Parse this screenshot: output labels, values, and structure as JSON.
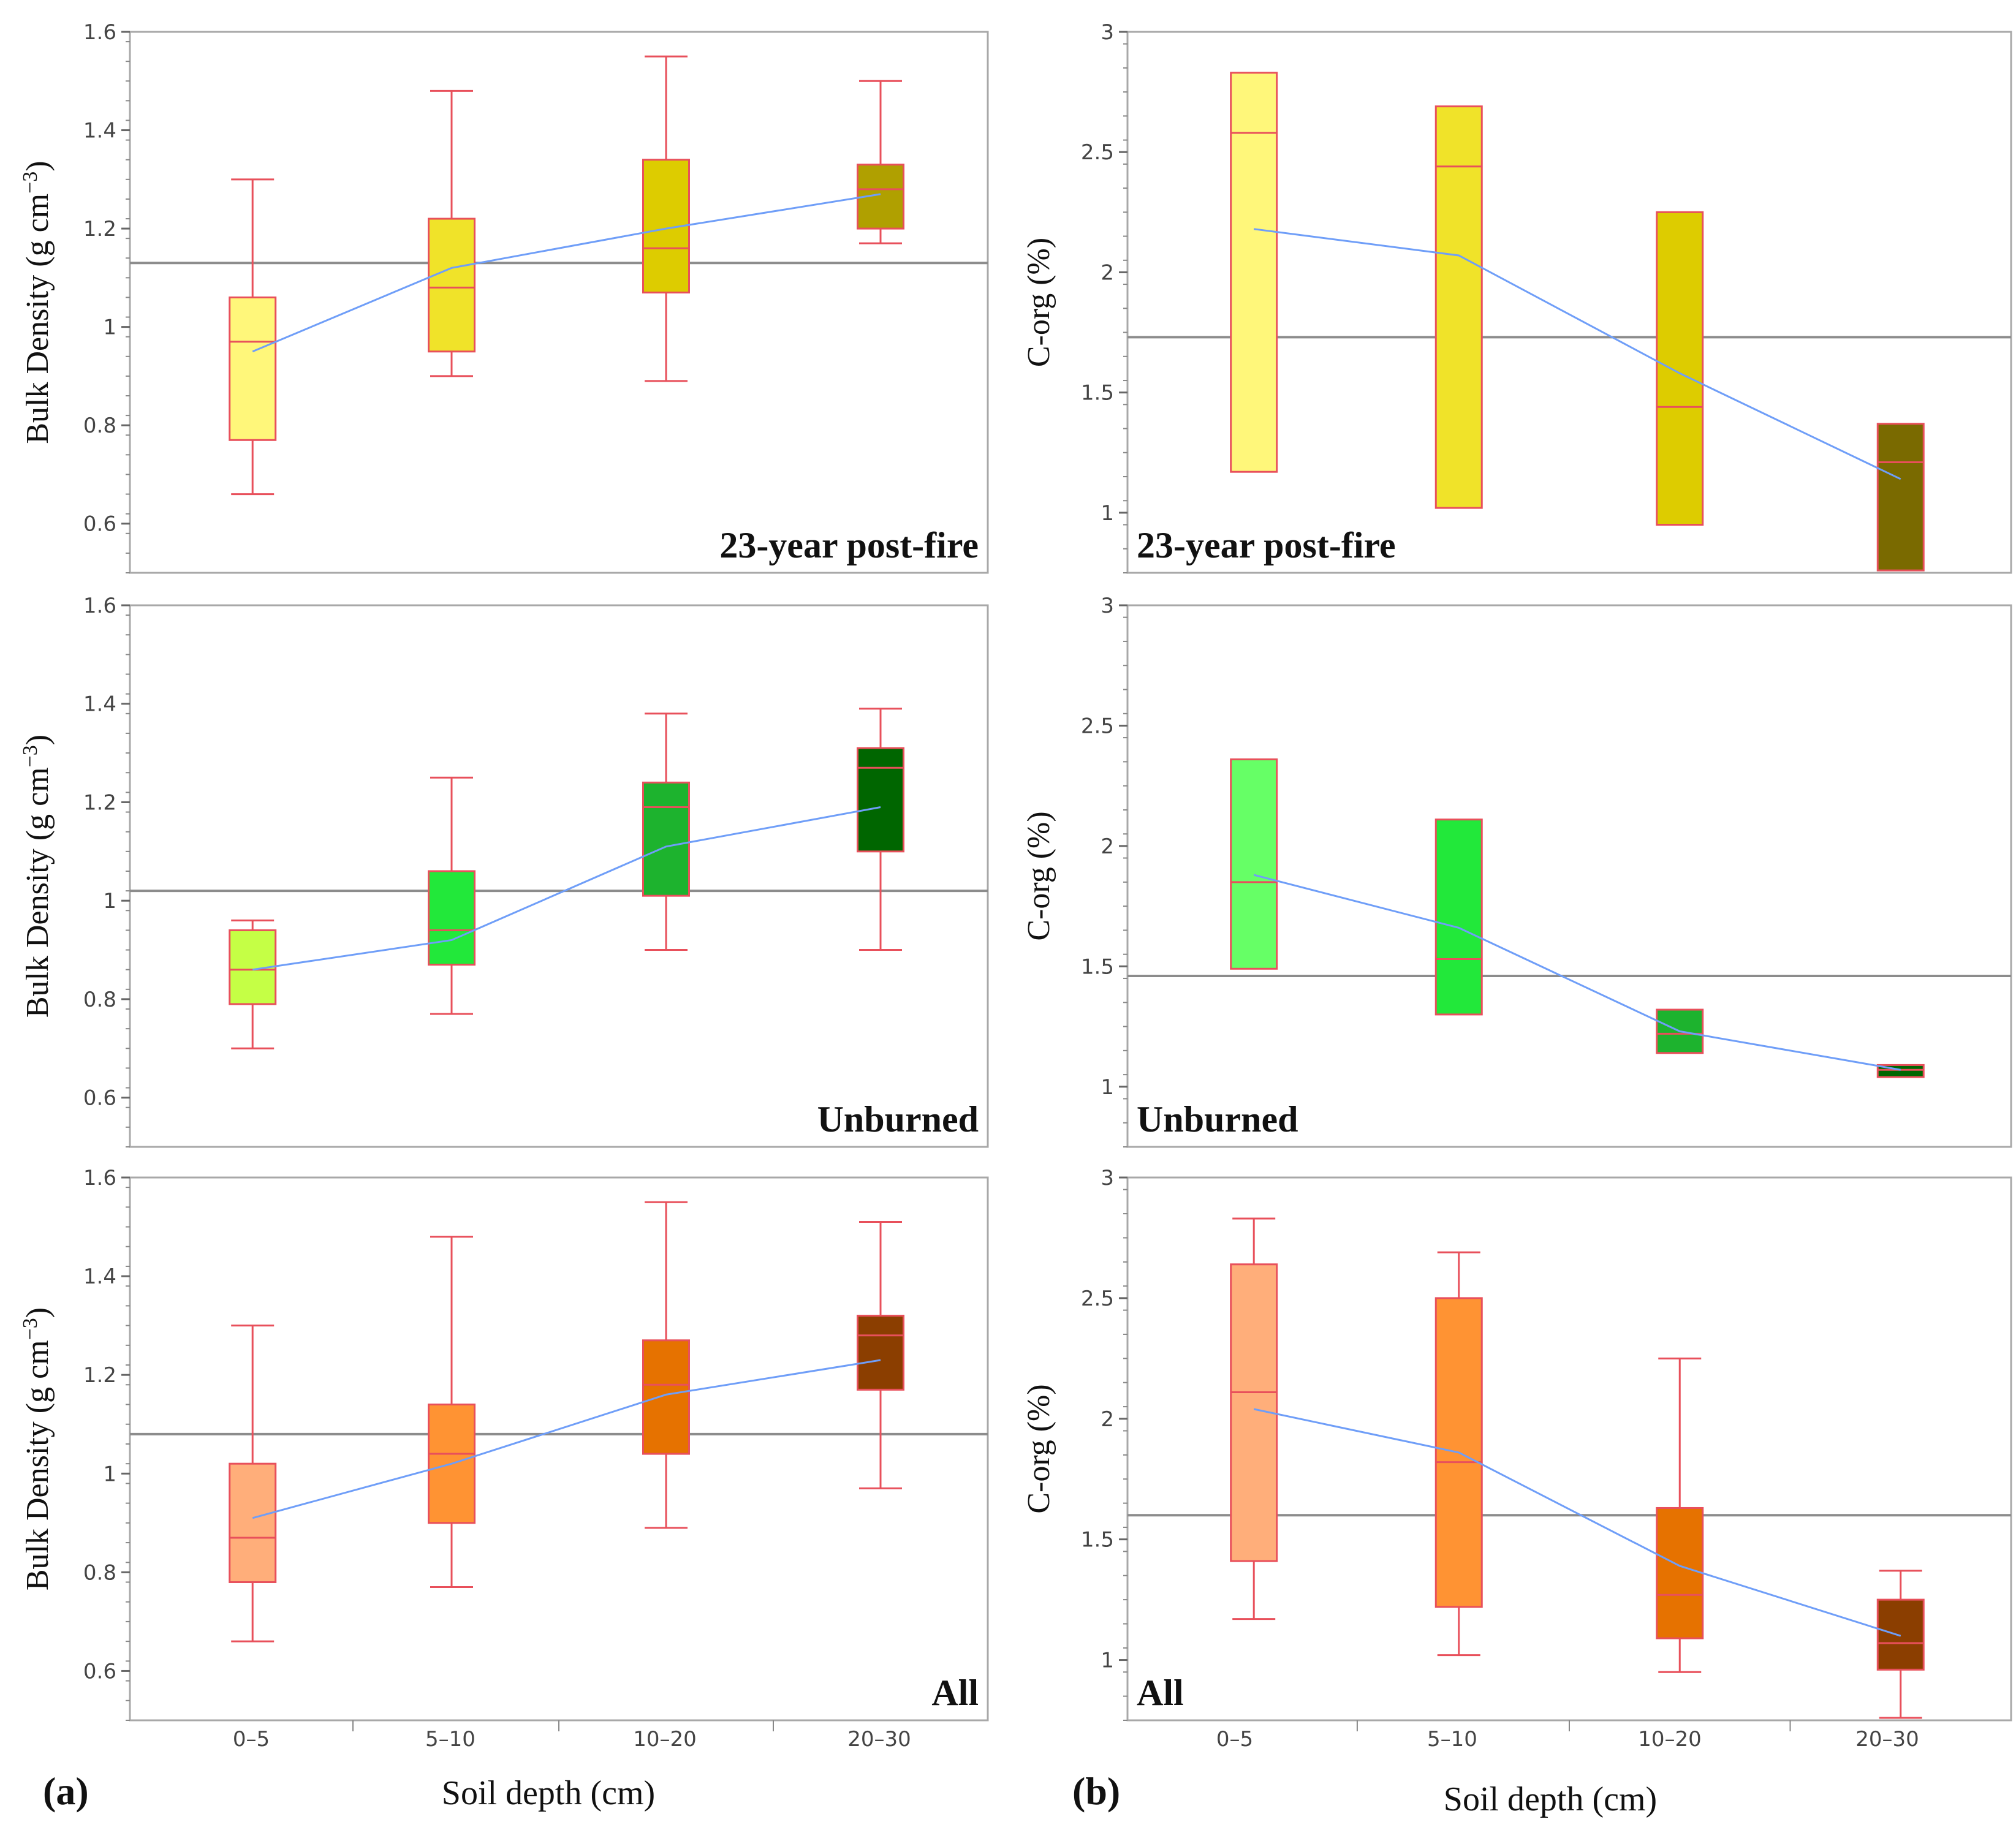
{
  "figure": {
    "part_labels": {
      "a": "(a)",
      "b": "(b)"
    },
    "xlabel": "Soil depth (cm)",
    "categories": [
      "0–5",
      "5–10",
      "10–20",
      "20–30"
    ],
    "colors": {
      "whisker": "#e8505b",
      "mean_line": "#6f9ef8",
      "grand_mean": "#8c8c8c",
      "frame": "#a8a8a8"
    }
  },
  "chart_data": [
    {
      "id": "bd_postfire",
      "type": "box",
      "panel_label": "23-year post-fire",
      "ylabel_main": "Bulk Density (g cm",
      "ylabel_sup": "−3",
      "ylabel_end": ")",
      "ylim": [
        0.5,
        1.6
      ],
      "yticks": [
        "0.6",
        "0.8",
        "1",
        "1.2",
        "1.4",
        "1.6"
      ],
      "ytick_values": [
        0.6,
        0.8,
        1.0,
        1.2,
        1.4,
        1.6
      ],
      "grand_mean": 1.13,
      "fills": [
        "#fff77a",
        "#f0e329",
        "#ddcc00",
        "#b0a000"
      ],
      "boxes": [
        {
          "category": "0–5",
          "min": 0.66,
          "q1": 0.77,
          "median": 0.97,
          "q3": 1.06,
          "max": 1.3,
          "mean": 0.95
        },
        {
          "category": "5–10",
          "min": 0.9,
          "q1": 0.95,
          "median": 1.08,
          "q3": 1.22,
          "max": 1.48,
          "mean": 1.12
        },
        {
          "category": "10–20",
          "min": 0.89,
          "q1": 1.07,
          "median": 1.16,
          "q3": 1.34,
          "max": 1.55,
          "mean": 1.2
        },
        {
          "category": "20–30",
          "min": 1.17,
          "q1": 1.2,
          "median": 1.28,
          "q3": 1.33,
          "max": 1.5,
          "mean": 1.27
        }
      ]
    },
    {
      "id": "corg_postfire",
      "type": "box",
      "panel_label": "23-year post-fire",
      "ylabel_main": "C-org (%)",
      "ylabel_sup": "",
      "ylabel_end": "",
      "ylim": [
        0.75,
        3.0
      ],
      "yticks": [
        "1",
        "1.5",
        "2",
        "2.5",
        "3"
      ],
      "ytick_values": [
        1.0,
        1.5,
        2.0,
        2.5,
        3.0
      ],
      "grand_mean": 1.73,
      "fills": [
        "#fff77a",
        "#f0e329",
        "#ddcc00",
        "#7a6a00"
      ],
      "boxes": [
        {
          "category": "0–5",
          "min": 1.17,
          "q1": 1.17,
          "median": 2.58,
          "q3": 2.83,
          "max": 2.83,
          "mean": 2.18
        },
        {
          "category": "5–10",
          "min": 1.02,
          "q1": 1.02,
          "median": 2.44,
          "q3": 2.69,
          "max": 2.69,
          "mean": 2.07
        },
        {
          "category": "10–20",
          "min": 0.95,
          "q1": 0.95,
          "median": 1.44,
          "q3": 2.25,
          "max": 2.25,
          "mean": 1.58
        },
        {
          "category": "20–30",
          "min": 0.76,
          "q1": 0.76,
          "median": 1.21,
          "q3": 1.37,
          "max": 1.37,
          "mean": 1.14
        }
      ]
    },
    {
      "id": "bd_unburned",
      "type": "box",
      "panel_label": "Unburned",
      "ylabel_main": "Bulk Density (g cm",
      "ylabel_sup": "−3",
      "ylabel_end": ")",
      "ylim": [
        0.5,
        1.6
      ],
      "yticks": [
        "0.6",
        "0.8",
        "1",
        "1.2",
        "1.4",
        "1.6"
      ],
      "ytick_values": [
        0.6,
        0.8,
        1.0,
        1.2,
        1.4,
        1.6
      ],
      "grand_mean": 1.02,
      "fills": [
        "#c5ff45",
        "#22e83a",
        "#1db32e",
        "#006600"
      ],
      "boxes": [
        {
          "category": "0–5",
          "min": 0.7,
          "q1": 0.79,
          "median": 0.86,
          "q3": 0.94,
          "max": 0.96,
          "mean": 0.86
        },
        {
          "category": "5–10",
          "min": 0.77,
          "q1": 0.87,
          "median": 0.94,
          "q3": 1.06,
          "max": 1.25,
          "mean": 0.92
        },
        {
          "category": "10–20",
          "min": 0.9,
          "q1": 1.01,
          "median": 1.19,
          "q3": 1.24,
          "max": 1.38,
          "mean": 1.11
        },
        {
          "category": "20–30",
          "min": 0.9,
          "q1": 1.1,
          "median": 1.27,
          "q3": 1.31,
          "max": 1.39,
          "mean": 1.19
        }
      ]
    },
    {
      "id": "corg_unburned",
      "type": "box",
      "panel_label": "Unburned",
      "ylabel_main": "C-org (%)",
      "ylabel_sup": "",
      "ylabel_end": "",
      "ylim": [
        0.75,
        3.0
      ],
      "yticks": [
        "1",
        "1.5",
        "2",
        "2.5",
        "3"
      ],
      "ytick_values": [
        1.0,
        1.5,
        2.0,
        2.5,
        3.0
      ],
      "grand_mean": 1.46,
      "fills": [
        "#66ff66",
        "#22e83a",
        "#1db32e",
        "#006600"
      ],
      "boxes": [
        {
          "category": "0–5",
          "min": 1.49,
          "q1": 1.49,
          "median": 1.85,
          "q3": 2.36,
          "max": 2.36,
          "mean": 1.88
        },
        {
          "category": "5–10",
          "min": 1.3,
          "q1": 1.3,
          "median": 1.53,
          "q3": 2.11,
          "max": 2.11,
          "mean": 1.66
        },
        {
          "category": "10–20",
          "min": 1.14,
          "q1": 1.14,
          "median": 1.22,
          "q3": 1.32,
          "max": 1.32,
          "mean": 1.23
        },
        {
          "category": "20–30",
          "min": 1.04,
          "q1": 1.04,
          "median": 1.07,
          "q3": 1.09,
          "max": 1.09,
          "mean": 1.07
        }
      ]
    },
    {
      "id": "bd_all",
      "type": "box",
      "panel_label": "All",
      "ylabel_main": "Bulk Density (g cm",
      "ylabel_sup": "−3",
      "ylabel_end": ")",
      "ylim": [
        0.5,
        1.6
      ],
      "yticks": [
        "0.6",
        "0.8",
        "1",
        "1.2",
        "1.4",
        "1.6"
      ],
      "ytick_values": [
        0.6,
        0.8,
        1.0,
        1.2,
        1.4,
        1.6
      ],
      "grand_mean": 1.08,
      "fills": [
        "#ffae7a",
        "#ff9333",
        "#e67200",
        "#8b3e00"
      ],
      "boxes": [
        {
          "category": "0–5",
          "min": 0.66,
          "q1": 0.78,
          "median": 0.87,
          "q3": 1.02,
          "max": 1.3,
          "mean": 0.91
        },
        {
          "category": "5–10",
          "min": 0.77,
          "q1": 0.9,
          "median": 1.04,
          "q3": 1.14,
          "max": 1.48,
          "mean": 1.02
        },
        {
          "category": "10–20",
          "min": 0.89,
          "q1": 1.04,
          "median": 1.18,
          "q3": 1.27,
          "max": 1.55,
          "mean": 1.16
        },
        {
          "category": "20–30",
          "min": 0.97,
          "q1": 1.17,
          "median": 1.28,
          "q3": 1.32,
          "max": 1.51,
          "mean": 1.23
        }
      ]
    },
    {
      "id": "corg_all",
      "type": "box",
      "panel_label": "All",
      "ylabel_main": "C-org (%)",
      "ylabel_sup": "",
      "ylabel_end": "",
      "ylim": [
        0.75,
        3.0
      ],
      "yticks": [
        "1",
        "1.5",
        "2",
        "2.5",
        "3"
      ],
      "ytick_values": [
        1.0,
        1.5,
        2.0,
        2.5,
        3.0
      ],
      "grand_mean": 1.6,
      "fills": [
        "#ffae7a",
        "#ff9333",
        "#e67200",
        "#8b3e00"
      ],
      "boxes": [
        {
          "category": "0–5",
          "min": 1.17,
          "q1": 1.41,
          "median": 2.11,
          "q3": 2.64,
          "max": 2.83,
          "mean": 2.04
        },
        {
          "category": "5–10",
          "min": 1.02,
          "q1": 1.22,
          "median": 1.82,
          "q3": 2.5,
          "max": 2.69,
          "mean": 1.86
        },
        {
          "category": "10–20",
          "min": 0.95,
          "q1": 1.09,
          "median": 1.27,
          "q3": 1.63,
          "max": 2.25,
          "mean": 1.39
        },
        {
          "category": "20–30",
          "min": 0.76,
          "q1": 0.96,
          "median": 1.07,
          "q3": 1.25,
          "max": 1.37,
          "mean": 1.1
        }
      ]
    }
  ]
}
